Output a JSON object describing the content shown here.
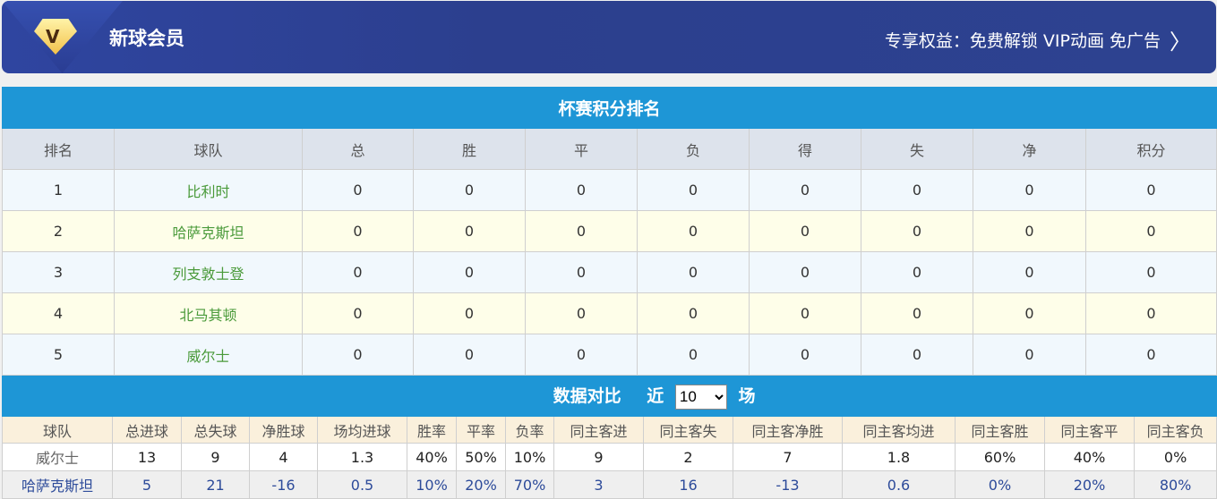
{
  "banner": {
    "title": "新球会员",
    "perk": "专享权益：免费解锁 VIP动画 免广告",
    "gem_letter": "V",
    "colors": {
      "bg": "#2c3f8e",
      "gem": "#f2c14a"
    }
  },
  "standings": {
    "title": "杯赛积分排名",
    "headers": [
      "排名",
      "球队",
      "总",
      "胜",
      "平",
      "负",
      "得",
      "失",
      "净",
      "积分"
    ],
    "rows": [
      [
        "1",
        "比利时",
        "0",
        "0",
        "0",
        "0",
        "0",
        "0",
        "0",
        "0"
      ],
      [
        "2",
        "哈萨克斯坦",
        "0",
        "0",
        "0",
        "0",
        "0",
        "0",
        "0",
        "0"
      ],
      [
        "3",
        "列支敦士登",
        "0",
        "0",
        "0",
        "0",
        "0",
        "0",
        "0",
        "0"
      ],
      [
        "4",
        "北马其顿",
        "0",
        "0",
        "0",
        "0",
        "0",
        "0",
        "0",
        "0"
      ],
      [
        "5",
        "威尔士",
        "0",
        "0",
        "0",
        "0",
        "0",
        "0",
        "0",
        "0"
      ]
    ]
  },
  "compare": {
    "title": "数据对比",
    "near": "近",
    "matches": "10",
    "unit": "场",
    "headers": [
      "球队",
      "总进球",
      "总失球",
      "净胜球",
      "场均进球",
      "胜率",
      "平率",
      "负率",
      "同主客进",
      "同主客失",
      "同主客净胜",
      "同主客均进",
      "同主客胜",
      "同主客平",
      "同主客负"
    ],
    "rows": [
      [
        "威尔士",
        "13",
        "9",
        "4",
        "1.3",
        "40%",
        "50%",
        "10%",
        "9",
        "2",
        "7",
        "1.8",
        "60%",
        "40%",
        "0%"
      ],
      [
        "哈萨克斯坦",
        "5",
        "21",
        "-16",
        "0.5",
        "10%",
        "20%",
        "70%",
        "3",
        "16",
        "-13",
        "0.6",
        "0%",
        "20%",
        "80%"
      ]
    ]
  },
  "colors": {
    "accent": "#1e96d6"
  }
}
